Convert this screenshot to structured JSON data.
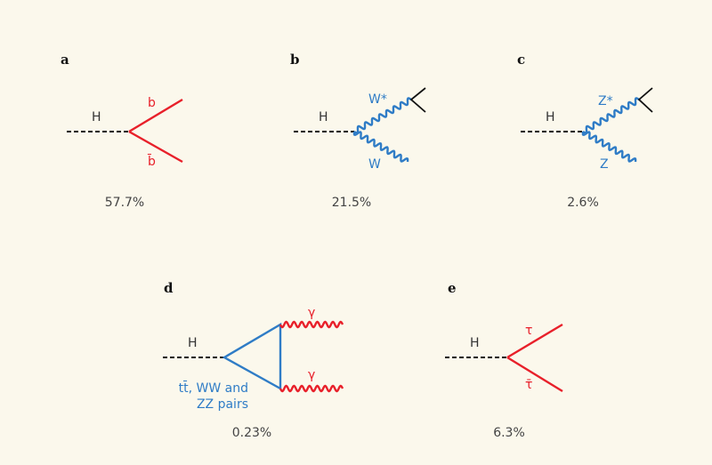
{
  "panels": [
    {
      "label": "a",
      "initial": "H",
      "products": [
        "b",
        "b̄"
      ],
      "fraction": "57.7%"
    },
    {
      "label": "b",
      "initial": "H",
      "products": [
        "W*",
        "W"
      ],
      "fraction": "21.5%"
    },
    {
      "label": "c",
      "initial": "H",
      "products": [
        "Z*",
        "Z"
      ],
      "fraction": "2.6%"
    },
    {
      "label": "d",
      "initial": "H",
      "products": [
        "γ",
        "γ"
      ],
      "loop": [
        "tt̄, WW and",
        "ZZ pairs"
      ],
      "fraction": "0.23%"
    },
    {
      "label": "e",
      "initial": "H",
      "products": [
        "τ",
        "τ̄"
      ],
      "fraction": "6.3%"
    }
  ]
}
